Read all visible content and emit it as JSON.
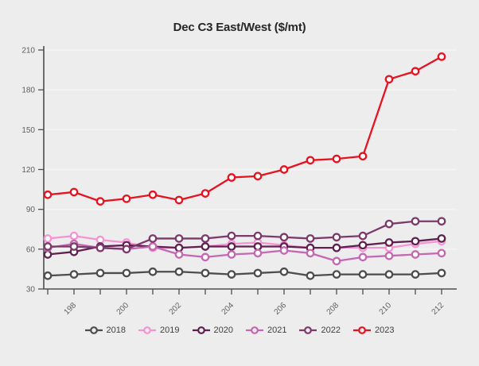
{
  "colors": {
    "background": "#eeedee",
    "grid": "#f6f5f6",
    "axis": "#4d4d4d",
    "tick_text": "#5f5f5f",
    "title_text": "#262626",
    "legend_text": "#3f3f3f"
  },
  "chart_data": {
    "type": "line",
    "title": "Dec C3 East/West ($/mt)",
    "marker": "open-circle",
    "grid": "horizontal",
    "legend_position": "bottom",
    "x": [
      197,
      198,
      199,
      200,
      201,
      202,
      203,
      204,
      205,
      206,
      207,
      208,
      209,
      210,
      211,
      212
    ],
    "x_axis": {
      "ticks": [
        197,
        198,
        199,
        200,
        201,
        202,
        203,
        204,
        205,
        206,
        207,
        208,
        209,
        210,
        211,
        212
      ],
      "labeled_ticks": [
        "198",
        "200",
        "202",
        "204",
        "206",
        "208",
        "210",
        "212"
      ],
      "label_rotation_deg": -45
    },
    "y_axis": {
      "min": 30,
      "max": 210,
      "step": 30,
      "ticks": [
        "30",
        "60",
        "90",
        "120",
        "150",
        "180",
        "210"
      ]
    },
    "series": [
      {
        "name": "2018",
        "color": "#4d4d4d",
        "values": [
          40,
          41,
          42,
          42,
          43,
          43,
          42,
          41,
          42,
          43,
          40,
          41,
          41,
          41,
          41,
          42
        ]
      },
      {
        "name": "2019",
        "color": "#f693d2",
        "values": [
          68,
          70,
          67,
          65,
          61,
          61,
          62,
          64,
          65,
          63,
          61,
          61,
          61,
          61,
          64,
          66
        ]
      },
      {
        "name": "2020",
        "color": "#5e2150",
        "values": [
          56,
          58,
          62,
          63,
          62,
          61,
          62,
          62,
          62,
          62,
          61,
          61,
          63,
          65,
          66,
          68
        ]
      },
      {
        "name": "2021",
        "color": "#c468b1",
        "values": [
          61,
          64,
          61,
          60,
          62,
          56,
          54,
          56,
          57,
          59,
          57,
          51,
          54,
          55,
          56,
          57
        ]
      },
      {
        "name": "2022",
        "color": "#7b3a6b",
        "values": [
          62,
          62,
          61,
          60,
          68,
          68,
          68,
          70,
          70,
          69,
          68,
          69,
          70,
          79,
          81,
          81
        ]
      },
      {
        "name": "2023",
        "color": "#e51220",
        "values": [
          101,
          103,
          96,
          98,
          101,
          97,
          102,
          114,
          115,
          120,
          127,
          128,
          130,
          188,
          194,
          205
        ]
      }
    ]
  }
}
